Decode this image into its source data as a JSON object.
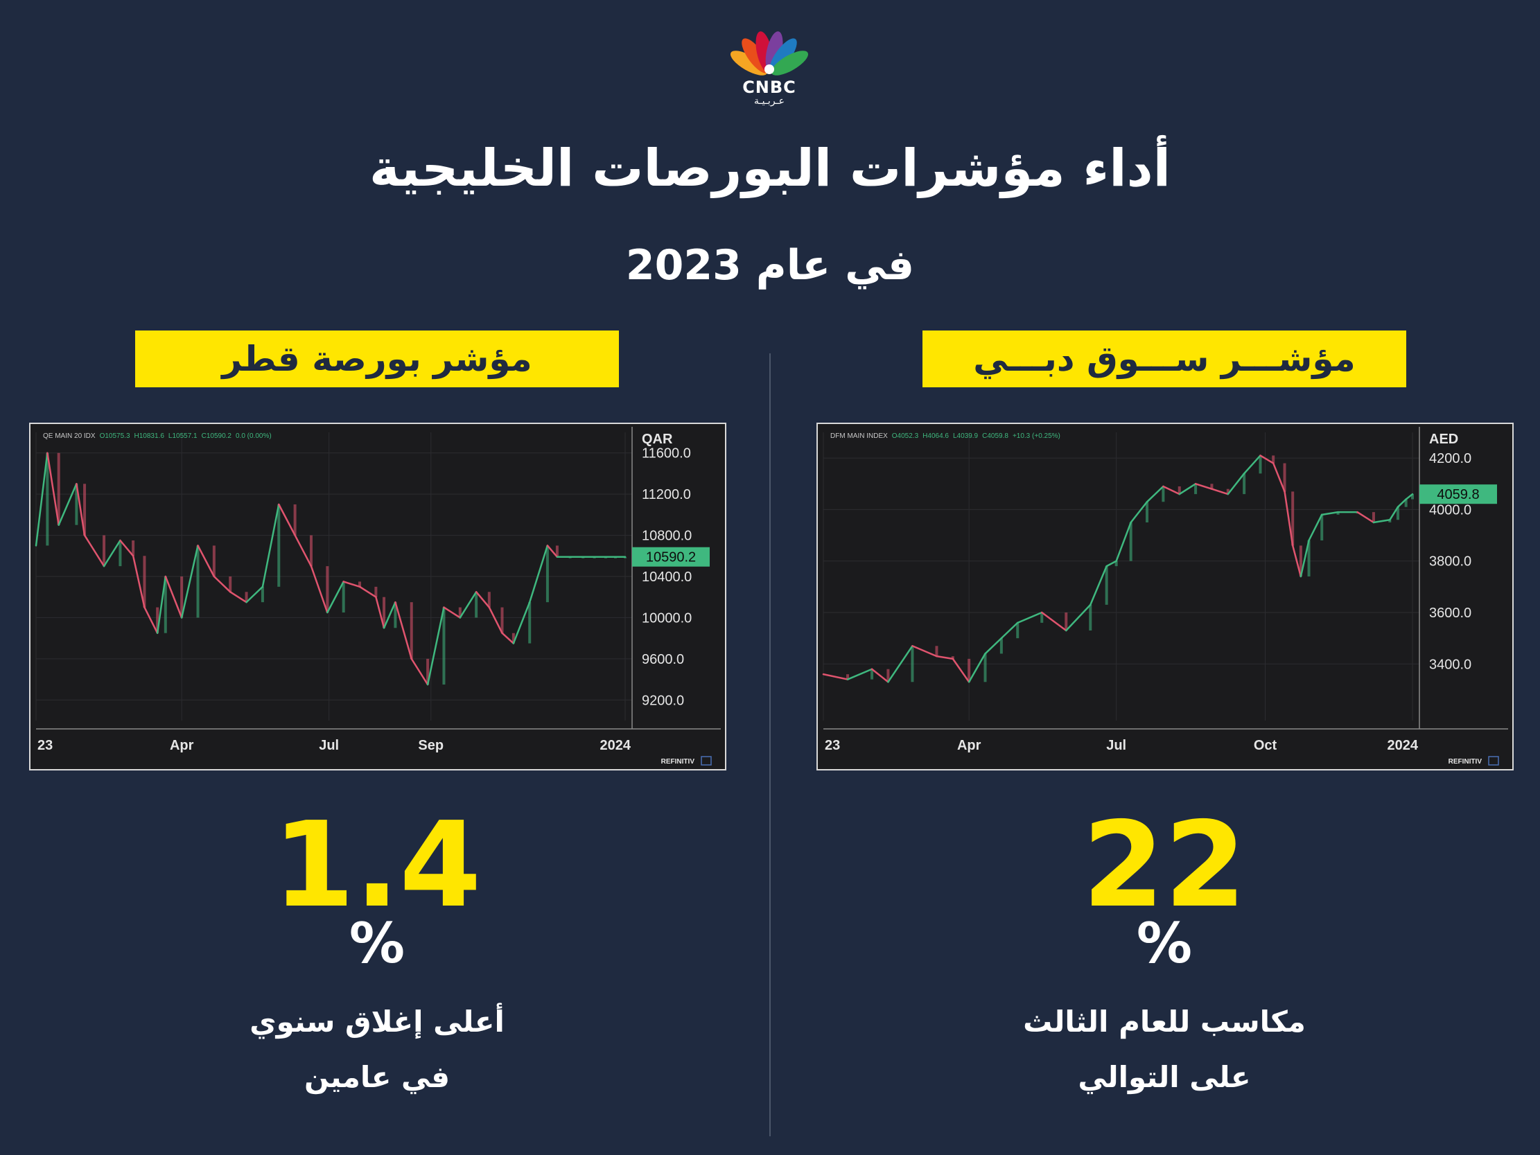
{
  "logo": {
    "brand": "CNBC",
    "brand_ar": "عـربـيـة",
    "icon": "peacock-icon",
    "feather_colors": [
      "#f5a623",
      "#e94e1b",
      "#d0103a",
      "#7b3f9e",
      "#1f7bc1",
      "#33a852"
    ]
  },
  "header": {
    "title": "أداء مؤشرات البورصات الخليجية",
    "subtitle": "في عام 2023"
  },
  "colors": {
    "background": "#1f2a40",
    "accent": "#ffe600",
    "up": "#3fb87f",
    "down": "#e0546e"
  },
  "qatar": {
    "banner": "مؤشر بورصة قطر",
    "value": "1.4",
    "percent": "%",
    "caption_line1": "أعلى إغلاق سنوي",
    "caption_line2": "في عامين"
  },
  "dubai": {
    "banner": "مؤشـــر ســـوق دبـــي",
    "value": "22",
    "percent": "%",
    "caption_line1": "مكاسب للعام الثالث",
    "caption_line2": "على التوالي"
  },
  "chart_data": [
    {
      "type": "line",
      "id": "qatar",
      "header_name": "QE MAIN 20 IDX",
      "header_o": "O10575.3",
      "header_h": "H10831.6",
      "header_l": "L10557.1",
      "header_c": "C10590.2",
      "header_chg": "0.0 (0.00%)",
      "currency": "QAR",
      "ylim": [
        9000,
        11800
      ],
      "y_ticks": [
        "11600.0",
        "11200.0",
        "10800.0",
        "10400.0",
        "10000.0",
        "9600.0",
        "9200.0"
      ],
      "y_tick_values": [
        11600,
        11200,
        10800,
        10400,
        10000,
        9600,
        9200
      ],
      "x_ticks": [
        "23",
        "Apr",
        "Jul",
        "Sep",
        "2024"
      ],
      "x_tick_days": [
        0,
        90,
        181,
        244,
        364
      ],
      "last_value": 10590.2,
      "last_label": "10590.2",
      "source": "REFINITIV",
      "x": [
        0,
        7,
        14,
        25,
        30,
        42,
        52,
        60,
        67,
        75,
        80,
        90,
        100,
        110,
        120,
        130,
        140,
        150,
        160,
        170,
        180,
        190,
        200,
        210,
        215,
        222,
        232,
        242,
        252,
        262,
        272,
        280,
        288,
        295,
        305,
        316,
        322,
        330,
        338,
        345,
        352,
        358,
        364
      ],
      "y": [
        10700,
        11600,
        10900,
        11300,
        10800,
        10500,
        10750,
        10600,
        10100,
        9850,
        10400,
        10000,
        10700,
        10400,
        10250,
        10150,
        10300,
        11100,
        10800,
        10500,
        10050,
        10350,
        10300,
        10200,
        9900,
        10150,
        9600,
        9350,
        10100,
        10000,
        10250,
        10100,
        9850,
        9750,
        10150,
        10700,
        10590,
        10590,
        10590,
        10590,
        10590,
        10590,
        10590
      ]
    },
    {
      "type": "line",
      "id": "dubai",
      "header_name": "DFM MAIN INDEX",
      "header_o": "O4052.3",
      "header_h": "H4064.6",
      "header_l": "L4039.9",
      "header_c": "C4059.8",
      "header_chg": "+10.3 (+0.25%)",
      "currency": "AED",
      "ylim": [
        3180,
        4300
      ],
      "y_ticks": [
        "4200.0",
        "4000.0",
        "3800.0",
        "3600.0",
        "3400.0"
      ],
      "y_tick_values": [
        4200,
        4000,
        3800,
        3600,
        3400
      ],
      "x_ticks": [
        "23",
        "Apr",
        "Jul",
        "Oct",
        "2024"
      ],
      "x_tick_days": [
        0,
        90,
        181,
        273,
        364
      ],
      "last_value": 4059.8,
      "last_label": "4059.8",
      "source": "REFINITIV",
      "x": [
        0,
        15,
        30,
        40,
        55,
        70,
        80,
        90,
        100,
        110,
        120,
        135,
        150,
        165,
        175,
        181,
        190,
        200,
        210,
        220,
        230,
        240,
        250,
        260,
        270,
        278,
        285,
        290,
        295,
        300,
        308,
        318,
        330,
        340,
        350,
        355,
        360,
        364
      ],
      "y": [
        3360,
        3340,
        3380,
        3330,
        3470,
        3430,
        3420,
        3330,
        3440,
        3500,
        3560,
        3600,
        3530,
        3630,
        3780,
        3800,
        3950,
        4030,
        4090,
        4060,
        4100,
        4080,
        4060,
        4140,
        4210,
        4180,
        4070,
        3860,
        3740,
        3880,
        3980,
        3990,
        3990,
        3950,
        3960,
        4010,
        4040,
        4059.8
      ]
    }
  ]
}
